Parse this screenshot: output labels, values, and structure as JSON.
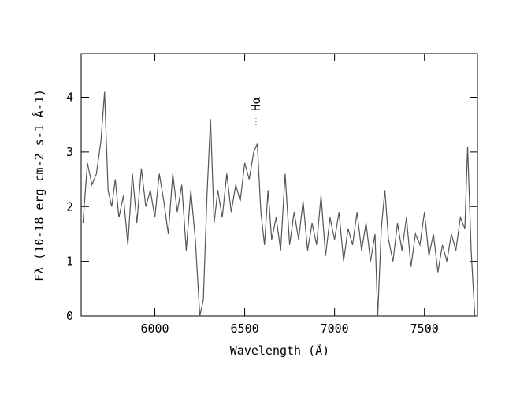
{
  "chart_data": {
    "type": "line",
    "xlabel": "Wavelength (Å)",
    "ylabel": "Fλ (10-18 erg cm-2 s-1 Å-1)",
    "annotation": {
      "text": "Hα",
      "x": 6563
    },
    "xlim": [
      5590,
      7795
    ],
    "ylim": [
      0,
      4.8
    ],
    "xticks": [
      6000,
      6500,
      7000,
      7500
    ],
    "yticks": [
      0,
      1,
      2,
      3,
      4
    ],
    "series": [
      {
        "color": "#555555",
        "x": [
          5600,
          5625,
          5650,
          5675,
          5700,
          5720,
          5740,
          5760,
          5780,
          5800,
          5825,
          5850,
          5875,
          5900,
          5925,
          5950,
          5975,
          6000,
          6025,
          6050,
          6075,
          6100,
          6125,
          6150,
          6175,
          6200,
          6225,
          6250,
          6270,
          6290,
          6310,
          6330,
          6350,
          6375,
          6400,
          6425,
          6450,
          6475,
          6500,
          6525,
          6550,
          6570,
          6590,
          6610,
          6630,
          6650,
          6675,
          6700,
          6725,
          6750,
          6775,
          6800,
          6825,
          6850,
          6875,
          6900,
          6925,
          6950,
          6975,
          7000,
          7025,
          7050,
          7075,
          7100,
          7125,
          7150,
          7175,
          7200,
          7225,
          7240,
          7260,
          7280,
          7300,
          7325,
          7350,
          7375,
          7400,
          7425,
          7450,
          7475,
          7500,
          7525,
          7550,
          7575,
          7600,
          7625,
          7650,
          7675,
          7700,
          7725,
          7740,
          7760,
          7780
        ],
        "values": [
          1.7,
          2.8,
          2.4,
          2.6,
          3.2,
          4.1,
          2.3,
          2.0,
          2.5,
          1.8,
          2.2,
          1.3,
          2.6,
          1.7,
          2.7,
          2.0,
          2.3,
          1.8,
          2.6,
          2.1,
          1.5,
          2.6,
          1.9,
          2.4,
          1.2,
          2.3,
          1.4,
          0.0,
          0.3,
          2.2,
          3.6,
          1.7,
          2.3,
          1.8,
          2.6,
          1.9,
          2.4,
          2.1,
          2.8,
          2.5,
          3.0,
          3.15,
          1.9,
          1.3,
          2.3,
          1.4,
          1.8,
          1.2,
          2.6,
          1.3,
          1.9,
          1.4,
          2.1,
          1.2,
          1.7,
          1.3,
          2.2,
          1.1,
          1.8,
          1.4,
          1.9,
          1.0,
          1.6,
          1.3,
          1.9,
          1.2,
          1.7,
          1.0,
          1.5,
          0.0,
          1.6,
          2.3,
          1.4,
          1.0,
          1.7,
          1.2,
          1.8,
          0.9,
          1.5,
          1.3,
          1.9,
          1.1,
          1.5,
          0.8,
          1.3,
          1.0,
          1.5,
          1.2,
          1.8,
          1.6,
          3.1,
          1.2,
          0.0
        ]
      }
    ]
  }
}
